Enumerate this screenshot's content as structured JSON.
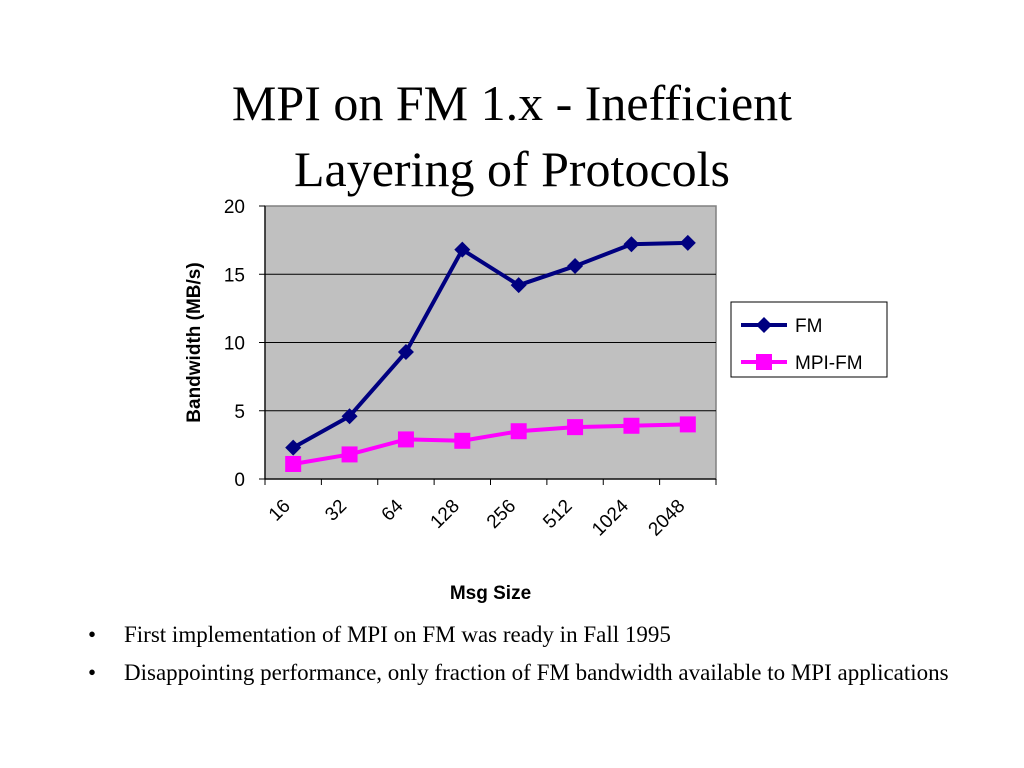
{
  "slide": {
    "title_line1": "MPI on FM 1.x - Inefficient",
    "title_line2": "Layering of Protocols",
    "bullets": [
      "First implementation of MPI on FM  was ready in Fall 1995",
      "Disappointing performance, only fraction of FM bandwidth available to MPI applications"
    ],
    "bullet_symbol": "•"
  },
  "chart_data": {
    "type": "line",
    "title": "",
    "xlabel": "Msg Size",
    "ylabel": "Bandwidth (MB/s)",
    "categories": [
      "16",
      "32",
      "64",
      "128",
      "256",
      "512",
      "1024",
      "2048"
    ],
    "ylim": [
      0,
      20
    ],
    "yticks": [
      0,
      5,
      10,
      15,
      20
    ],
    "grid": true,
    "legend_position": "right",
    "plot_background": "#c0c0c0",
    "series": [
      {
        "name": "FM",
        "color": "#000080",
        "marker": "diamond",
        "values": [
          2.3,
          4.6,
          9.3,
          16.8,
          14.2,
          15.6,
          17.2,
          17.3
        ]
      },
      {
        "name": "MPI-FM",
        "color": "#ff00ff",
        "marker": "square",
        "values": [
          1.1,
          1.8,
          2.9,
          2.8,
          3.5,
          3.8,
          3.9,
          4.0
        ]
      }
    ]
  }
}
